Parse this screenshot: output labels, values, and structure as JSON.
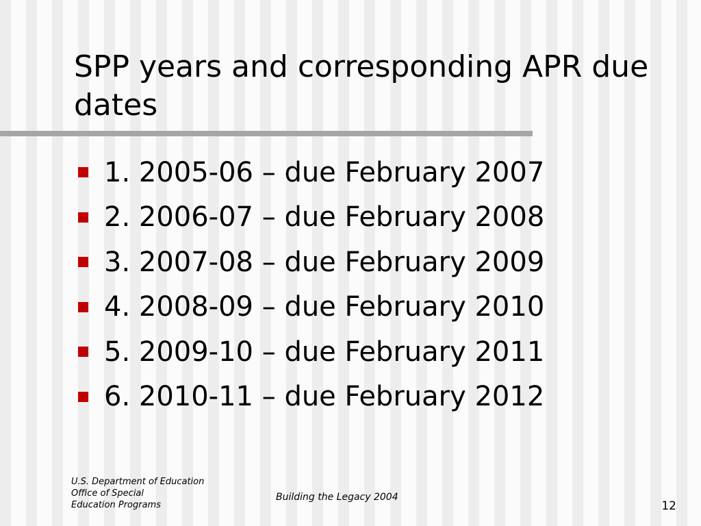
{
  "slide": {
    "title": "SPP years and corresponding APR due dates",
    "bullet_color": "#c00000",
    "items": [
      "1. 2005-06 – due February 2007",
      "2. 2006-07 – due February 2008",
      "3. 2007-08 – due February 2009",
      "4. 2008-09 – due February 2010",
      "5. 2009-10 – due February 2011",
      "6. 2010-11 – due February 2012"
    ]
  },
  "footer": {
    "organization_lines": [
      "U.S. Department of Education",
      "Office of Special",
      "Education Programs"
    ],
    "center_text": "Building the Legacy 2004",
    "page_number": "12"
  }
}
